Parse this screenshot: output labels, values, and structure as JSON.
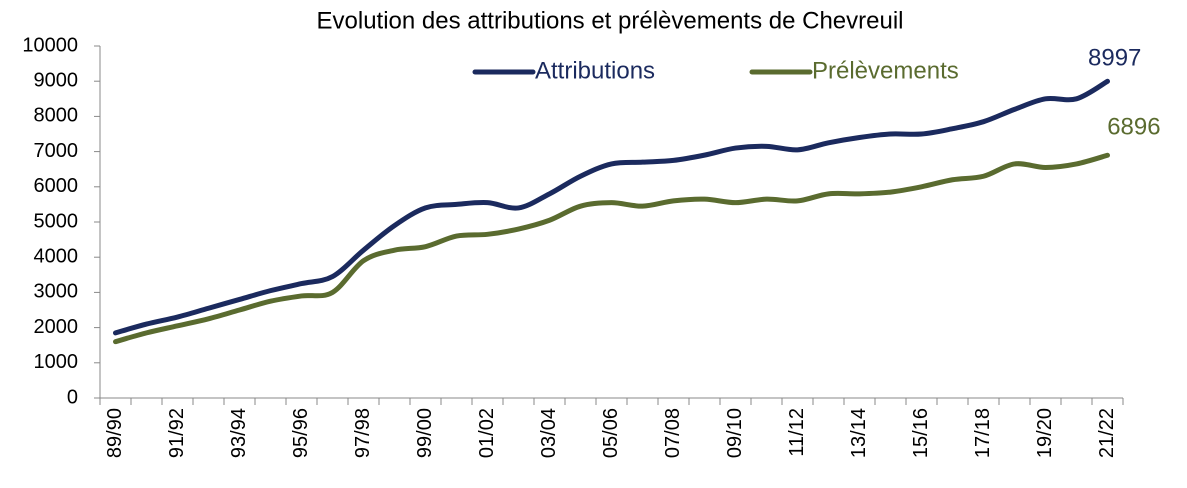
{
  "chart_data": {
    "type": "line",
    "title": "Evolution des attributions et prélèvements de Chevreuil",
    "categories": [
      "89/90",
      null,
      "91/92",
      null,
      "93/94",
      null,
      "95/96",
      null,
      "97/98",
      null,
      "99/00",
      null,
      "01/02",
      null,
      "03/04",
      null,
      "05/06",
      null,
      "07/08",
      null,
      "09/10",
      null,
      "11/12",
      null,
      "13/14",
      null,
      "15/16",
      null,
      "17/18",
      null,
      "19/20",
      null,
      "21/22"
    ],
    "series": [
      {
        "name": "Attributions",
        "color": "#1b2a5e",
        "values": [
          1850,
          2100,
          2300,
          2550,
          2800,
          3050,
          3250,
          3450,
          4200,
          4900,
          5400,
          5500,
          5550,
          5400,
          5800,
          6300,
          6650,
          6700,
          6750,
          6900,
          7100,
          7150,
          7050,
          7250,
          7400,
          7500,
          7500,
          7650,
          7850,
          8200,
          8500,
          8500,
          8997
        ]
      },
      {
        "name": "Prélèvements",
        "color": "#5a6b2f",
        "values": [
          1600,
          1850,
          2050,
          2250,
          2500,
          2750,
          2900,
          3000,
          3900,
          4200,
          4300,
          4600,
          4650,
          4800,
          5050,
          5450,
          5550,
          5450,
          5600,
          5650,
          5550,
          5650,
          5600,
          5800,
          5800,
          5850,
          6000,
          6200,
          6300,
          6650,
          6550,
          6650,
          6896
        ]
      }
    ],
    "ylim": [
      0,
      10000
    ],
    "yticks": [
      0,
      1000,
      2000,
      3000,
      4000,
      5000,
      6000,
      7000,
      8000,
      9000,
      10000
    ],
    "legend": "top"
  }
}
